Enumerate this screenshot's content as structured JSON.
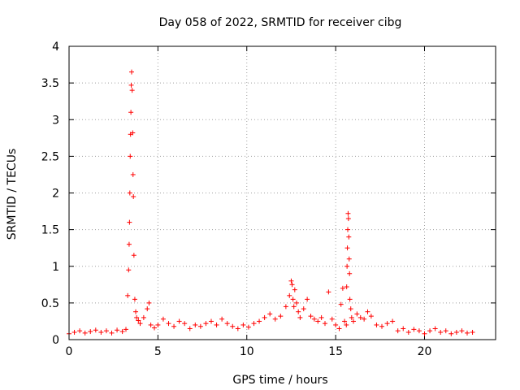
{
  "chart_data": {
    "type": "scatter",
    "title": "Day 058 of 2022, SRMTID for receiver cibg",
    "xlabel": "GPS time / hours",
    "ylabel": "SRMTID / TECUs",
    "xlim": [
      0,
      24
    ],
    "ylim": [
      0,
      4
    ],
    "xticks": [
      0,
      5,
      10,
      15,
      20
    ],
    "xtick_labels": [
      "0",
      "5",
      "10",
      "15",
      "20"
    ],
    "yticks": [
      0,
      0.5,
      1,
      1.5,
      2,
      2.5,
      3,
      3.5,
      4
    ],
    "ytick_labels": [
      "0",
      "0.5",
      "1",
      "1.5",
      "2",
      "2.5",
      "3",
      "3.5",
      "4"
    ],
    "grid": true,
    "marker": "+",
    "marker_color": "#ff0000",
    "series": [
      {
        "name": "SRMTID",
        "x": [
          0.0,
          0.3,
          0.6,
          0.9,
          1.2,
          1.5,
          1.8,
          2.1,
          2.4,
          2.7,
          3.0,
          3.2,
          3.3,
          3.35,
          3.38,
          3.4,
          3.42,
          3.44,
          3.46,
          3.48,
          3.5,
          3.52,
          3.55,
          3.58,
          3.6,
          3.62,
          3.65,
          3.7,
          3.75,
          3.8,
          3.9,
          4.0,
          4.2,
          4.4,
          4.5,
          4.6,
          4.8,
          5.0,
          5.3,
          5.6,
          5.9,
          6.2,
          6.5,
          6.8,
          7.1,
          7.4,
          7.7,
          8.0,
          8.3,
          8.6,
          8.9,
          9.2,
          9.5,
          9.8,
          10.1,
          10.4,
          10.7,
          11.0,
          11.3,
          11.6,
          11.9,
          12.2,
          12.4,
          12.5,
          12.55,
          12.6,
          12.65,
          12.7,
          12.8,
          12.9,
          13.0,
          13.2,
          13.4,
          13.6,
          13.8,
          14.0,
          14.2,
          14.4,
          14.6,
          14.8,
          15.0,
          15.2,
          15.3,
          15.4,
          15.5,
          15.6,
          15.62,
          15.64,
          15.66,
          15.68,
          15.7,
          15.72,
          15.74,
          15.76,
          15.78,
          15.8,
          15.85,
          15.9,
          16.0,
          16.2,
          16.4,
          16.6,
          16.8,
          17.0,
          17.3,
          17.6,
          17.9,
          18.2,
          18.5,
          18.8,
          19.1,
          19.4,
          19.7,
          20.0,
          20.3,
          20.6,
          20.9,
          21.2,
          21.5,
          21.8,
          22.1,
          22.4,
          22.7
        ],
        "y": [
          0.08,
          0.1,
          0.12,
          0.09,
          0.11,
          0.13,
          0.1,
          0.12,
          0.09,
          0.13,
          0.11,
          0.14,
          0.6,
          0.95,
          1.3,
          1.6,
          2.0,
          2.5,
          2.8,
          3.1,
          3.47,
          3.65,
          3.4,
          2.82,
          2.25,
          1.95,
          1.15,
          0.55,
          0.38,
          0.3,
          0.26,
          0.22,
          0.3,
          0.42,
          0.5,
          0.2,
          0.16,
          0.2,
          0.28,
          0.22,
          0.18,
          0.25,
          0.22,
          0.15,
          0.2,
          0.18,
          0.22,
          0.25,
          0.2,
          0.28,
          0.22,
          0.18,
          0.15,
          0.2,
          0.17,
          0.22,
          0.25,
          0.3,
          0.35,
          0.28,
          0.32,
          0.45,
          0.6,
          0.8,
          0.75,
          0.55,
          0.45,
          0.68,
          0.5,
          0.38,
          0.3,
          0.42,
          0.55,
          0.32,
          0.28,
          0.25,
          0.3,
          0.22,
          0.65,
          0.28,
          0.2,
          0.15,
          0.48,
          0.7,
          0.25,
          0.2,
          0.72,
          1.0,
          1.25,
          1.5,
          1.72,
          1.65,
          1.4,
          1.1,
          0.9,
          0.55,
          0.42,
          0.3,
          0.25,
          0.35,
          0.3,
          0.28,
          0.38,
          0.32,
          0.2,
          0.18,
          0.22,
          0.25,
          0.12,
          0.15,
          0.1,
          0.14,
          0.12,
          0.08,
          0.12,
          0.15,
          0.1,
          0.12,
          0.08,
          0.1,
          0.12,
          0.09,
          0.1
        ]
      }
    ]
  }
}
